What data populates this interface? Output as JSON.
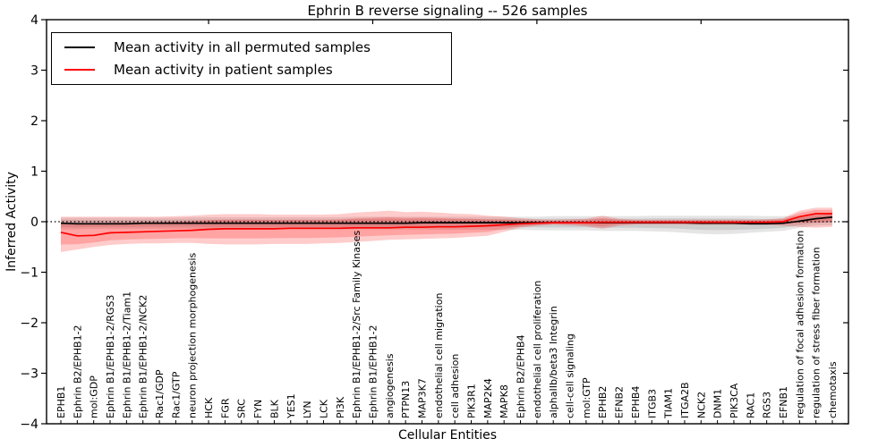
{
  "figure": {
    "title": "Ephrin B reverse signaling -- 526 samples",
    "xlabel": "Cellular Entities",
    "ylabel": "Inferred Activity",
    "legend": {
      "permuted_label": "Mean activity in all permuted samples",
      "patient_label": "Mean activity in patient samples"
    }
  },
  "chart_data": {
    "type": "line",
    "title": "Ephrin B reverse signaling -- 526 samples",
    "xlabel": "Cellular Entities",
    "ylabel": "Inferred Activity",
    "ylim": [
      -4,
      4
    ],
    "yticks": [
      -4,
      -3,
      -2,
      -1,
      0,
      1,
      2,
      3,
      4
    ],
    "grid": false,
    "legend_position": "upper left",
    "zero_reference_line": {
      "y": 0,
      "style": "dotted",
      "color": "#000000"
    },
    "colors": {
      "permuted_line": "#000000",
      "patient_line": "#ff0000",
      "permuted_band": "rgba(0,0,0,0.10)",
      "patient_band": "rgba(255,0,0,0.20)",
      "background": "#ffffff"
    },
    "categories": [
      "EPHB1",
      "Ephrin B2/EPHB1-2",
      "mol:GDP",
      "Ephrin B1/EPHB1-2/RGS3",
      "Ephrin B1/EPHB1-2/Tiam1",
      "Ephrin B1/EPHB1-2/NCK2",
      "Rac1/GDP",
      "Rac1/GTP",
      "neuron projection morphogenesis",
      "HCK",
      "FGR",
      "SRC",
      "FYN",
      "BLK",
      "YES1",
      "LYN",
      "LCK",
      "PI3K",
      "Ephrin B1/EPHB1-2/Src Family Kinases",
      "Ephrin B1/EPHB1-2",
      "angiogenesis",
      "PTPN13",
      "MAP3K7",
      "endothelial cell migration",
      "cell adhesion",
      "PIK3R1",
      "MAP2K4",
      "MAPK8",
      "Ephrin B2/EPHB4",
      "endothelial cell proliferation",
      "alphaIIb/beta3 Integrin",
      "cell-cell signaling",
      "mol:GTP",
      "EPHB2",
      "EFNB2",
      "EPHB4",
      "ITGB3",
      "TIAM1",
      "ITGA2B",
      "NCK2",
      "DNM1",
      "PIK3CA",
      "RAC1",
      "RGS3",
      "EFNB1",
      "regulation of focal adhesion formation",
      "regulation of stress fiber formation",
      "chemotaxis"
    ],
    "series": [
      {
        "name": "Mean activity in all permuted samples",
        "color": "#000000",
        "band_color": "rgba(0,0,0,0.10)",
        "values": [
          -0.03,
          -0.04,
          -0.04,
          -0.04,
          -0.04,
          -0.03,
          -0.03,
          -0.03,
          -0.03,
          -0.03,
          -0.03,
          -0.03,
          -0.03,
          -0.03,
          -0.03,
          -0.03,
          -0.03,
          -0.03,
          -0.03,
          -0.03,
          -0.03,
          -0.03,
          -0.02,
          -0.02,
          -0.02,
          -0.02,
          -0.02,
          -0.02,
          -0.02,
          -0.02,
          -0.02,
          -0.02,
          -0.02,
          -0.02,
          -0.02,
          -0.02,
          -0.02,
          -0.02,
          -0.02,
          -0.03,
          -0.03,
          -0.03,
          -0.04,
          -0.04,
          -0.03,
          0.01,
          0.06,
          0.09
        ],
        "band_lo": [
          -0.15,
          -0.15,
          -0.14,
          -0.14,
          -0.14,
          -0.14,
          -0.14,
          -0.14,
          -0.14,
          -0.15,
          -0.15,
          -0.15,
          -0.15,
          -0.15,
          -0.15,
          -0.15,
          -0.15,
          -0.15,
          -0.15,
          -0.15,
          -0.15,
          -0.15,
          -0.15,
          -0.16,
          -0.16,
          -0.16,
          -0.16,
          -0.16,
          -0.16,
          -0.17,
          -0.17,
          -0.17,
          -0.17,
          -0.18,
          -0.18,
          -0.18,
          -0.19,
          -0.2,
          -0.22,
          -0.24,
          -0.25,
          -0.24,
          -0.22,
          -0.2,
          -0.18,
          -0.12,
          -0.08,
          -0.07
        ],
        "band_hi": [
          0.08,
          0.08,
          0.08,
          0.08,
          0.08,
          0.08,
          0.08,
          0.08,
          0.09,
          0.09,
          0.09,
          0.09,
          0.09,
          0.09,
          0.09,
          0.09,
          0.09,
          0.09,
          0.1,
          0.1,
          0.1,
          0.1,
          0.1,
          0.1,
          0.1,
          0.1,
          0.1,
          0.1,
          0.1,
          0.1,
          0.11,
          0.11,
          0.11,
          0.11,
          0.11,
          0.11,
          0.12,
          0.12,
          0.12,
          0.12,
          0.12,
          0.12,
          0.12,
          0.11,
          0.11,
          0.12,
          0.16,
          0.18
        ]
      },
      {
        "name": "Mean activity in patient samples",
        "color": "#ff0000",
        "band_color": "rgba(255,0,0,0.20)",
        "values": [
          -0.21,
          -0.28,
          -0.27,
          -0.22,
          -0.21,
          -0.2,
          -0.19,
          -0.18,
          -0.17,
          -0.15,
          -0.14,
          -0.14,
          -0.14,
          -0.14,
          -0.13,
          -0.13,
          -0.13,
          -0.13,
          -0.12,
          -0.12,
          -0.12,
          -0.11,
          -0.11,
          -0.1,
          -0.1,
          -0.09,
          -0.08,
          -0.06,
          -0.04,
          -0.03,
          -0.02,
          -0.02,
          -0.02,
          -0.01,
          -0.01,
          -0.01,
          -0.01,
          -0.01,
          -0.01,
          -0.01,
          -0.01,
          -0.01,
          -0.01,
          -0.01,
          0.0,
          0.1,
          0.16,
          0.16
        ],
        "band_lo": [
          -0.6,
          -0.55,
          -0.5,
          -0.46,
          -0.44,
          -0.43,
          -0.43,
          -0.42,
          -0.42,
          -0.44,
          -0.45,
          -0.45,
          -0.45,
          -0.44,
          -0.44,
          -0.44,
          -0.43,
          -0.42,
          -0.4,
          -0.38,
          -0.36,
          -0.35,
          -0.34,
          -0.33,
          -0.32,
          -0.3,
          -0.28,
          -0.2,
          -0.12,
          -0.08,
          -0.06,
          -0.07,
          -0.09,
          -0.14,
          -0.08,
          -0.06,
          -0.06,
          -0.06,
          -0.06,
          -0.06,
          -0.06,
          -0.06,
          -0.06,
          -0.06,
          -0.08,
          -0.1,
          -0.12,
          -0.1
        ],
        "band_hi": [
          0.1,
          0.1,
          0.1,
          0.1,
          0.1,
          0.1,
          0.1,
          0.11,
          0.12,
          0.14,
          0.15,
          0.15,
          0.15,
          0.14,
          0.14,
          0.14,
          0.14,
          0.15,
          0.18,
          0.2,
          0.22,
          0.19,
          0.2,
          0.18,
          0.16,
          0.15,
          0.12,
          0.1,
          0.07,
          0.05,
          0.04,
          0.05,
          0.06,
          0.12,
          0.06,
          0.04,
          0.04,
          0.04,
          0.04,
          0.04,
          0.04,
          0.04,
          0.04,
          0.05,
          0.07,
          0.22,
          0.28,
          0.28
        ]
      }
    ]
  }
}
